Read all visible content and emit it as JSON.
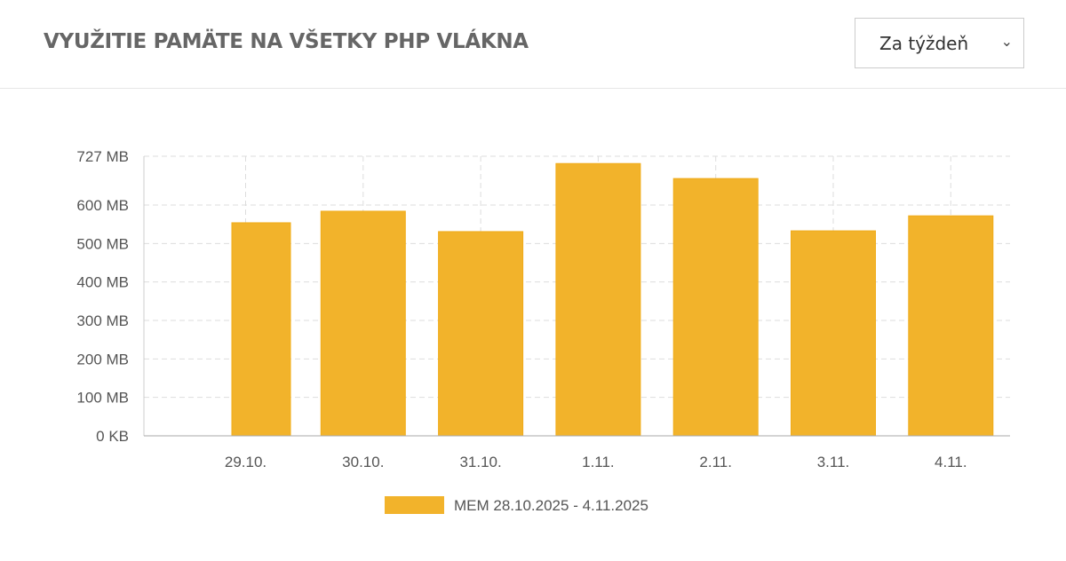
{
  "header": {
    "title": "VYUŽITIE PAMÄTE NA VŠETKY PHP VLÁKNA",
    "period_select": {
      "value": "Za týždeň",
      "icon": "chevron-down-icon"
    }
  },
  "chart_data": {
    "type": "bar",
    "categories": [
      "29.10.",
      "30.10.",
      "31.10.",
      "1.11.",
      "2.11.",
      "3.11.",
      "4.11."
    ],
    "series": [
      {
        "name": "MEM 28.10.2025 - 4.11.2025",
        "values": [
          554,
          584,
          531,
          708,
          669,
          533,
          572
        ],
        "color": "#f2b32b"
      }
    ],
    "unit": "MB",
    "ylim": [
      0,
      727
    ],
    "yticks": [
      {
        "v": 0,
        "label": "0 KB"
      },
      {
        "v": 100,
        "label": "100 MB"
      },
      {
        "v": 200,
        "label": "200 MB"
      },
      {
        "v": 300,
        "label": "300 MB"
      },
      {
        "v": 400,
        "label": "400 MB"
      },
      {
        "v": 500,
        "label": "500 MB"
      },
      {
        "v": 600,
        "label": "600 MB"
      },
      {
        "v": 727,
        "label": "727 MB"
      }
    ],
    "grid": true,
    "legend": "bottom"
  }
}
